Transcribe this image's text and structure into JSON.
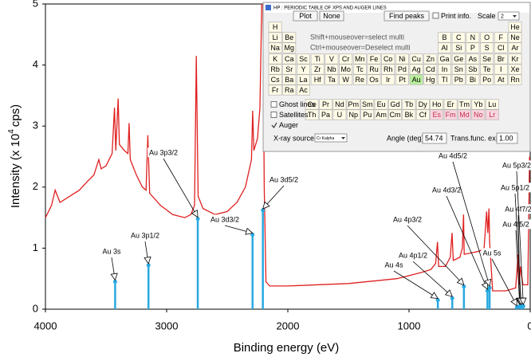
{
  "chart_data": {
    "type": "line",
    "x_label": "Binding energy (eV)",
    "y_label": [
      "Intensity (x 10",
      "4",
      "cps)"
    ],
    "xlim": [
      4000,
      0
    ],
    "xticks": [
      4000,
      3000,
      2000,
      1000,
      0
    ],
    "ylim": [
      0,
      5
    ],
    "yticks": [
      0,
      1,
      2,
      3,
      4,
      5
    ],
    "spectrum": {
      "color": "#e02020",
      "x": [
        4000,
        3950,
        3920,
        3880,
        3800,
        3720,
        3650,
        3600,
        3560,
        3540,
        3500,
        3450,
        3430,
        3420,
        3400,
        3390,
        3350,
        3320,
        3310,
        3300,
        3250,
        3200,
        3170,
        3155,
        3140,
        3050,
        2950,
        2850,
        2800,
        2770,
        2755,
        2740,
        2700,
        2600,
        2500,
        2420,
        2350,
        2300,
        2290,
        2280,
        2250,
        2230,
        2215,
        2205,
        2195,
        2180,
        2150,
        2000,
        1500,
        1100,
        1000,
        900,
        820,
        780,
        765,
        755,
        700,
        660,
        645,
        635,
        580,
        560,
        550,
        545,
        420,
        380,
        360,
        350,
        340,
        335,
        310,
        200,
        120,
        100,
        90,
        80,
        60,
        20,
        5
      ],
      "values": [
        1.5,
        1.7,
        1.95,
        1.75,
        1.85,
        1.95,
        2.1,
        2.2,
        2.45,
        2.3,
        2.35,
        2.55,
        3.3,
        2.6,
        3.45,
        2.7,
        2.6,
        2.55,
        3.05,
        2.45,
        2.2,
        2.0,
        1.95,
        2.85,
        1.9,
        1.7,
        1.55,
        1.5,
        1.55,
        1.7,
        4.15,
        1.85,
        1.65,
        1.55,
        1.6,
        1.75,
        2.0,
        2.45,
        3.25,
        2.6,
        2.8,
        3.3,
        5.0,
        5.0,
        2.0,
        0.45,
        0.38,
        0.38,
        0.42,
        0.5,
        0.55,
        0.6,
        0.65,
        0.75,
        1.1,
        0.7,
        0.7,
        0.85,
        1.25,
        0.8,
        0.85,
        1.0,
        1.55,
        0.9,
        0.95,
        1.0,
        1.6,
        1.25,
        1.65,
        1.1,
        0.3,
        0.3,
        0.35,
        0.9,
        0.4,
        0.7,
        0.4,
        0.4,
        2.5
      ]
    },
    "lines": {
      "color": "#29a9e0",
      "labels": [
        "Au 3s",
        "Au 3p1/2",
        "Au 3p3/2",
        "Au 3d3/2",
        "Au 3d5/2",
        "Au 4s",
        "Au 4p1/2",
        "Au 4p3/2",
        "Au 4d3/2",
        "Au 4d5/2",
        "Au 5s",
        "Au 4f5/2",
        "Au 4f7/2",
        "Au 5p1/2",
        "Au 5p3/2"
      ],
      "x": [
        3425,
        3150,
        2743,
        2291,
        2206,
        762,
        643,
        547,
        353,
        335,
        110,
        87,
        84,
        74,
        57
      ],
      "values": [
        0.45,
        0.72,
        1.48,
        1.22,
        1.62,
        0.15,
        0.18,
        0.37,
        0.3,
        0.35,
        0.03,
        0.05,
        0.05,
        0.05,
        0.05
      ]
    }
  },
  "dialog": {
    "title": "HP : PERIODIC TABLE OF XPS AND AUGER LINES",
    "buttons": [
      "Plot",
      "None",
      "Find peaks"
    ],
    "print_info": "Print info.",
    "scale_label": "Scale",
    "scale_value": "2",
    "hint": [
      "Shift+mouseover=select multi",
      "Ctrl+mouseover=Deselect multi"
    ],
    "elements": [
      [
        "H",
        "He"
      ],
      [
        "Li",
        "Be",
        "B",
        "C",
        "N",
        "O",
        "F",
        "Ne"
      ],
      [
        "Na",
        "Mg",
        "Al",
        "Si",
        "P",
        "S",
        "Cl",
        "Ar"
      ],
      [
        "K",
        "Ca",
        "Sc",
        "Ti",
        "V",
        "Cr",
        "Mn",
        "Fe",
        "Co",
        "Ni",
        "Cu",
        "Zn",
        "Ga",
        "Ge",
        "As",
        "Se",
        "Br",
        "Kr"
      ],
      [
        "Rb",
        "Sr",
        "Y",
        "Zr",
        "Nb",
        "Mo",
        "Tc",
        "Ru",
        "Rh",
        "Pd",
        "Ag",
        "Cd",
        "In",
        "Sn",
        "Sb",
        "Te",
        "I",
        "Xe"
      ],
      [
        "Cs",
        "Ba",
        "La",
        "Hf",
        "Ta",
        "W",
        "Re",
        "Os",
        "Ir",
        "Pt",
        "Au",
        "Hg",
        "Tl",
        "Pb",
        "Bi",
        "Po",
        "At",
        "Rn"
      ],
      [
        "Fr",
        "Ra",
        "Ac"
      ]
    ],
    "lanthanides": [
      "Ce",
      "Pr",
      "Nd",
      "Pm",
      "Sm",
      "Eu",
      "Gd",
      "Tb",
      "Dy",
      "Ho",
      "Er",
      "Tm",
      "Yb",
      "Lu"
    ],
    "actinides": [
      "Th",
      "Pa",
      "U",
      "Np",
      "Pu",
      "Am",
      "Cm",
      "Bk",
      "Cf",
      "Es",
      "Fm",
      "Md",
      "No",
      "Lr"
    ],
    "selected": "Au",
    "actinides_unavailable_from": 9,
    "options": [
      "Ghost lines",
      "Satellites",
      "Auger"
    ],
    "options_checked": [
      false,
      false,
      true
    ],
    "xray_label": "X-ray source",
    "xray_value": "Cr Kalpha",
    "angle_label": "Angle (deg)",
    "angle_value": "54.74",
    "trans_label": "Trans.func. exp.",
    "trans_value": "1.00"
  }
}
